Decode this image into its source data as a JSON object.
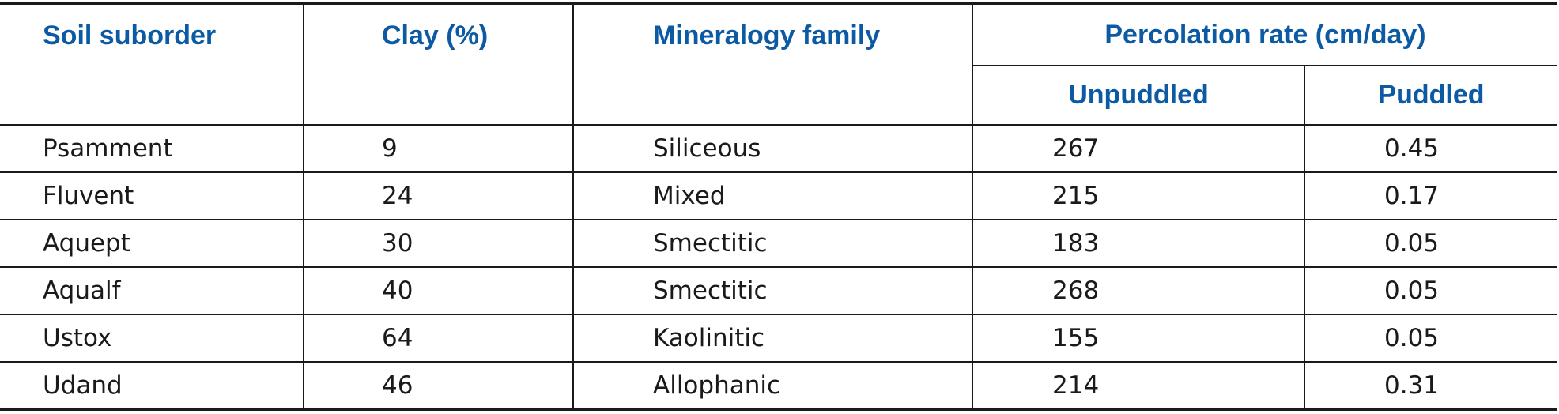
{
  "table": {
    "headers": {
      "soil_suborder": "Soil suborder",
      "clay": "Clay (%)",
      "mineralogy": "Mineralogy family",
      "percolation_group": "Percolation rate (cm/day)",
      "unpuddled": "Unpuddled",
      "puddled": "Puddled"
    },
    "rows": [
      {
        "suborder": "Psamment",
        "clay": "9",
        "mineralogy": "Siliceous",
        "unpuddled": "267",
        "puddled": "0.45"
      },
      {
        "suborder": "Fluvent",
        "clay": "24",
        "mineralogy": "Mixed",
        "unpuddled": "215",
        "puddled": "0.17"
      },
      {
        "suborder": "Aquept",
        "clay": "30",
        "mineralogy": "Smectitic",
        "unpuddled": "183",
        "puddled": "0.05"
      },
      {
        "suborder": "Aqualf",
        "clay": "40",
        "mineralogy": "Smectitic",
        "unpuddled": "268",
        "puddled": "0.05"
      },
      {
        "suborder": "Ustox",
        "clay": "64",
        "mineralogy": "Kaolinitic",
        "unpuddled": "155",
        "puddled": "0.05"
      },
      {
        "suborder": "Udand",
        "clay": "46",
        "mineralogy": "Allophanic",
        "unpuddled": "214",
        "puddled": "0.31"
      }
    ]
  },
  "colors": {
    "header_text": "#0b5aa3",
    "body_text": "#1a1a1a",
    "rule": "#1a1a1a"
  }
}
